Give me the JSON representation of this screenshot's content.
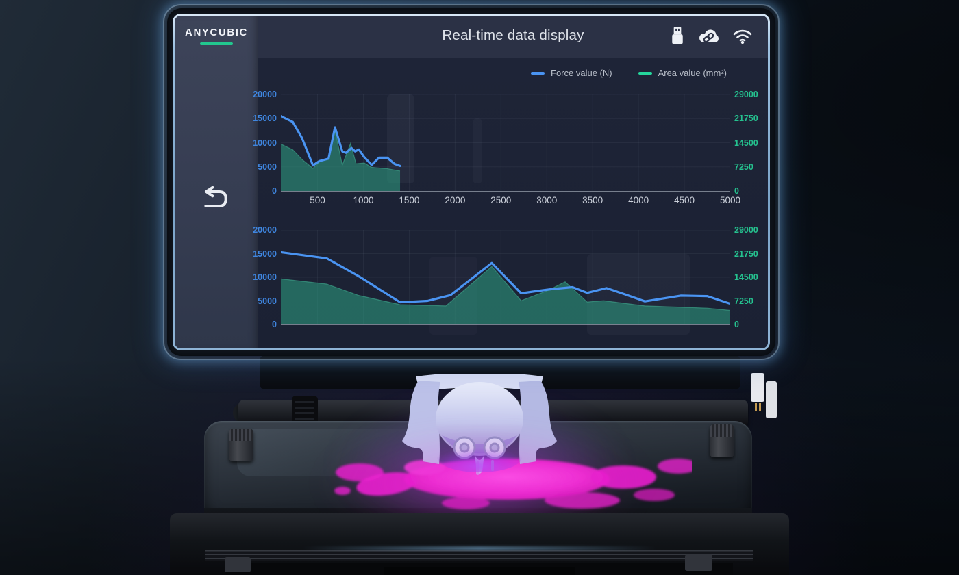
{
  "screen": {
    "brand": "ANYCUBIC",
    "title": "Real-time data display",
    "header_icons": [
      "usb-icon",
      "cloud-link-icon",
      "wifi-icon"
    ],
    "sidebar_icon": "back-arrow-icon"
  },
  "legend": [
    {
      "label": "Force value (N)",
      "color": "#4a94f2"
    },
    {
      "label": "Area value (mm²)",
      "color": "#25d69c"
    }
  ],
  "colors": {
    "accent_green": "#22c78e",
    "line_blue": "#4a94f2",
    "area_green_fill": "rgba(45,155,128,0.58)",
    "left_axis_label": "#3f86e0",
    "right_axis_label": "#25c28f",
    "resin_magenta": "#ee2fd2"
  },
  "chart_data": [
    {
      "type": "line+area",
      "title": "Force / Area realtime curve (upper)",
      "x_range": [
        100,
        5000
      ],
      "x_ticks": [
        500,
        1000,
        1500,
        2000,
        2500,
        3000,
        3500,
        4000,
        4500,
        5000
      ],
      "x_ticks_visible": true,
      "grid": true,
      "left_axis": {
        "label": "Force value (N)",
        "color": "#3f86e0",
        "max": 20000,
        "ticks": [
          20000,
          15000,
          10000,
          5000,
          0
        ]
      },
      "right_axis": {
        "label": "Area value (mm²)",
        "color": "#25c28f",
        "max": 29000,
        "ticks": [
          29000,
          21750,
          14500,
          7250,
          0
        ]
      },
      "series": [
        {
          "name": "Force value (N)",
          "axis": "left",
          "type": "line",
          "color": "#4a94f2",
          "points": [
            [
              100,
              15500
            ],
            [
              230,
              14300
            ],
            [
              330,
              11000
            ],
            [
              450,
              5300
            ],
            [
              520,
              6200
            ],
            [
              620,
              6700
            ],
            [
              690,
              13200
            ],
            [
              770,
              8200
            ],
            [
              810,
              7900
            ],
            [
              870,
              8900
            ],
            [
              910,
              8200
            ],
            [
              950,
              8600
            ],
            [
              1010,
              7000
            ],
            [
              1090,
              5400
            ],
            [
              1170,
              6900
            ],
            [
              1260,
              6900
            ],
            [
              1340,
              5600
            ],
            [
              1400,
              5200
            ]
          ]
        },
        {
          "name": "Area value (mm²)",
          "axis": "right",
          "type": "area",
          "color": "rgba(70,190,155,0.5)",
          "fill": "rgba(45,155,128,0.58)",
          "points": [
            [
              100,
              14100
            ],
            [
              230,
              12400
            ],
            [
              330,
              9500
            ],
            [
              450,
              6800
            ],
            [
              520,
              8700
            ],
            [
              620,
              9800
            ],
            [
              690,
              18300
            ],
            [
              770,
              7800
            ],
            [
              860,
              14300
            ],
            [
              920,
              8200
            ],
            [
              1010,
              8400
            ],
            [
              1090,
              7100
            ],
            [
              1260,
              6700
            ],
            [
              1400,
              6000
            ]
          ]
        }
      ]
    },
    {
      "type": "line+area",
      "title": "Force / Area realtime curve (lower)",
      "x_range": [
        100,
        5000
      ],
      "x_ticks": [
        500,
        1000,
        1500,
        2000,
        2500,
        3000,
        3500,
        4000,
        4500,
        5000
      ],
      "x_ticks_visible": false,
      "grid": true,
      "left_axis": {
        "label": "Force value (N)",
        "color": "#3f86e0",
        "max": 20000,
        "ticks": [
          20000,
          15000,
          10000,
          5000,
          0
        ]
      },
      "right_axis": {
        "label": "Area value (mm²)",
        "color": "#25c28f",
        "max": 29000,
        "ticks": [
          29000,
          21750,
          14500,
          7250,
          0
        ]
      },
      "series": [
        {
          "name": "Force value (N)",
          "axis": "left",
          "type": "line",
          "color": "#4a94f2",
          "points": [
            [
              100,
              15300
            ],
            [
              600,
              14000
            ],
            [
              950,
              10200
            ],
            [
              1400,
              4700
            ],
            [
              1700,
              5000
            ],
            [
              1950,
              6200
            ],
            [
              2400,
              13000
            ],
            [
              2720,
              6600
            ],
            [
              2900,
              7100
            ],
            [
              3060,
              7500
            ],
            [
              3280,
              7900
            ],
            [
              3440,
              6700
            ],
            [
              3650,
              7700
            ],
            [
              3850,
              6400
            ],
            [
              4070,
              4900
            ],
            [
              4460,
              6100
            ],
            [
              4750,
              6000
            ],
            [
              5000,
              4400
            ]
          ]
        },
        {
          "name": "Area value (mm²)",
          "axis": "right",
          "type": "area",
          "color": "rgba(70,190,155,0.5)",
          "fill": "rgba(45,155,128,0.58)",
          "points": [
            [
              100,
              14000
            ],
            [
              600,
              12400
            ],
            [
              950,
              8900
            ],
            [
              1400,
              6100
            ],
            [
              1900,
              5700
            ],
            [
              2400,
              17800
            ],
            [
              2720,
              7300
            ],
            [
              3000,
              10300
            ],
            [
              3200,
              13100
            ],
            [
              3440,
              6900
            ],
            [
              3620,
              7300
            ],
            [
              4070,
              5700
            ],
            [
              4460,
              5300
            ],
            [
              4750,
              5000
            ],
            [
              5000,
              4300
            ]
          ]
        }
      ]
    }
  ]
}
